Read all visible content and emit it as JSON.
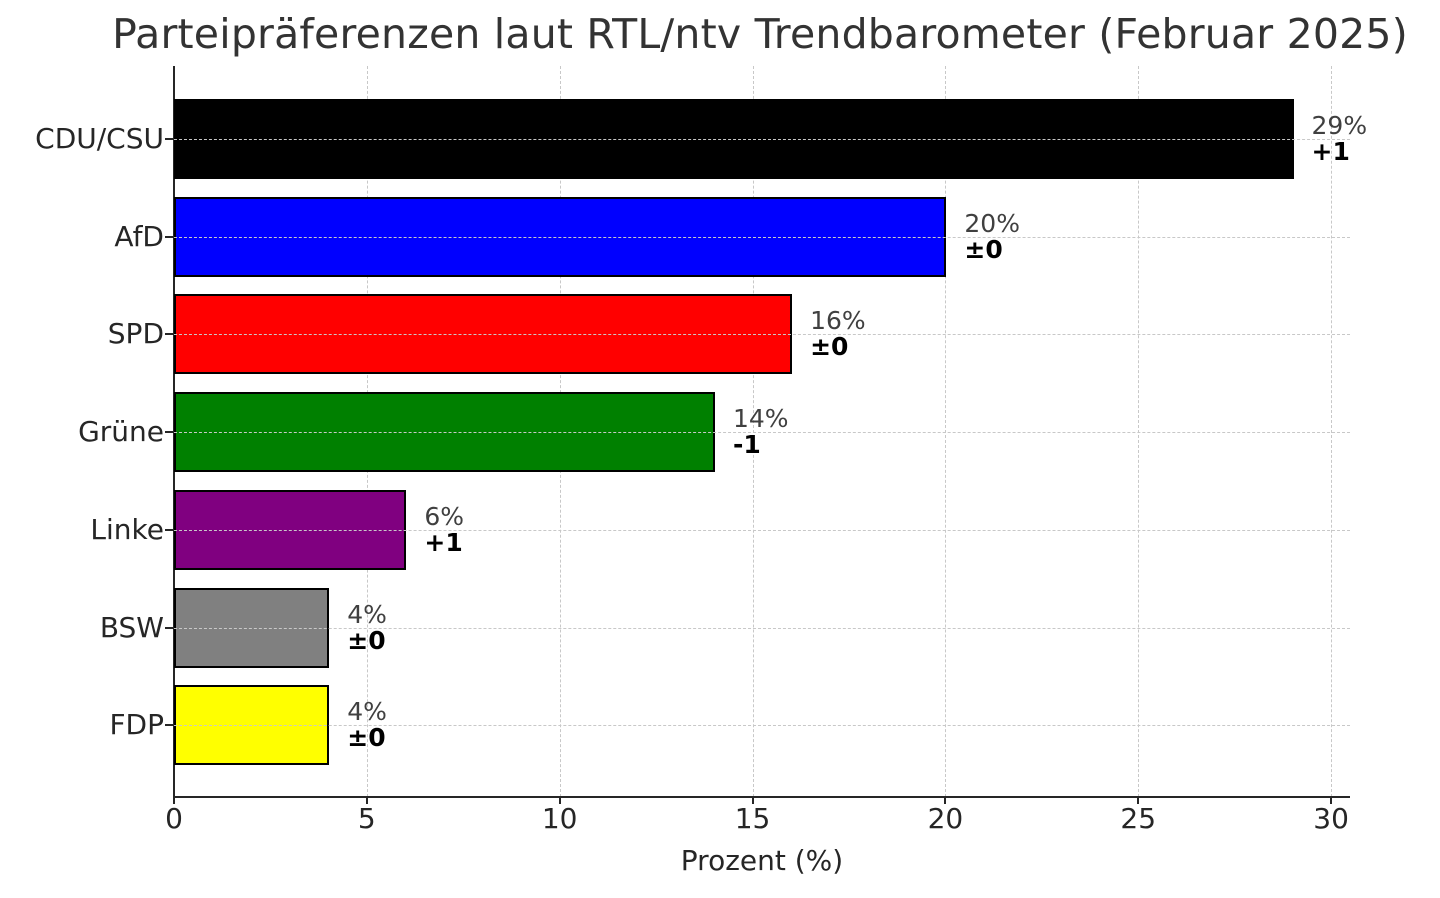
{
  "title": "Parteipräferenzen laut RTL/ntv Trendbarometer (Februar 2025)",
  "xlabel": "Prozent (%)",
  "x_ticks": [
    "0",
    "5",
    "10",
    "15",
    "20",
    "25",
    "30"
  ],
  "parties": [
    {
      "name": "CDU/CSU",
      "value": 29,
      "value_label": "29%",
      "change": "+1",
      "color": "#000000"
    },
    {
      "name": "AfD",
      "value": 20,
      "value_label": "20%",
      "change": "±0",
      "color": "#0000ff"
    },
    {
      "name": "SPD",
      "value": 16,
      "value_label": "16%",
      "change": "±0",
      "color": "#ff0000"
    },
    {
      "name": "Grüne",
      "value": 14,
      "value_label": "14%",
      "change": "-1",
      "color": "#008000"
    },
    {
      "name": "Linke",
      "value": 6,
      "value_label": "6%",
      "change": "+1",
      "color": "#800080"
    },
    {
      "name": "BSW",
      "value": 4,
      "value_label": "4%",
      "change": "±0",
      "color": "#808080"
    },
    {
      "name": "FDP",
      "value": 4,
      "value_label": "4%",
      "change": "±0",
      "color": "#ffff00"
    }
  ],
  "chart_data": {
    "type": "bar",
    "orientation": "horizontal",
    "title": "Parteipräferenzen laut RTL/ntv Trendbarometer (Februar 2025)",
    "xlabel": "Prozent (%)",
    "ylabel": "",
    "categories": [
      "CDU/CSU",
      "AfD",
      "SPD",
      "Grüne",
      "Linke",
      "BSW",
      "FDP"
    ],
    "values": [
      29,
      20,
      16,
      14,
      6,
      4,
      4
    ],
    "value_labels": [
      "29%",
      "20%",
      "16%",
      "14%",
      "6%",
      "4%",
      "4%"
    ],
    "changes": [
      "+1",
      "±0",
      "±0",
      "-1",
      "+1",
      "±0",
      "±0"
    ],
    "colors": [
      "#000000",
      "#0000ff",
      "#ff0000",
      "#008000",
      "#800080",
      "#808080",
      "#ffff00"
    ],
    "xlim": [
      0,
      30.5
    ],
    "x_ticks": [
      0,
      5,
      10,
      15,
      20,
      25,
      30
    ],
    "grid": true,
    "grid_style": "dashed",
    "legend": null
  }
}
